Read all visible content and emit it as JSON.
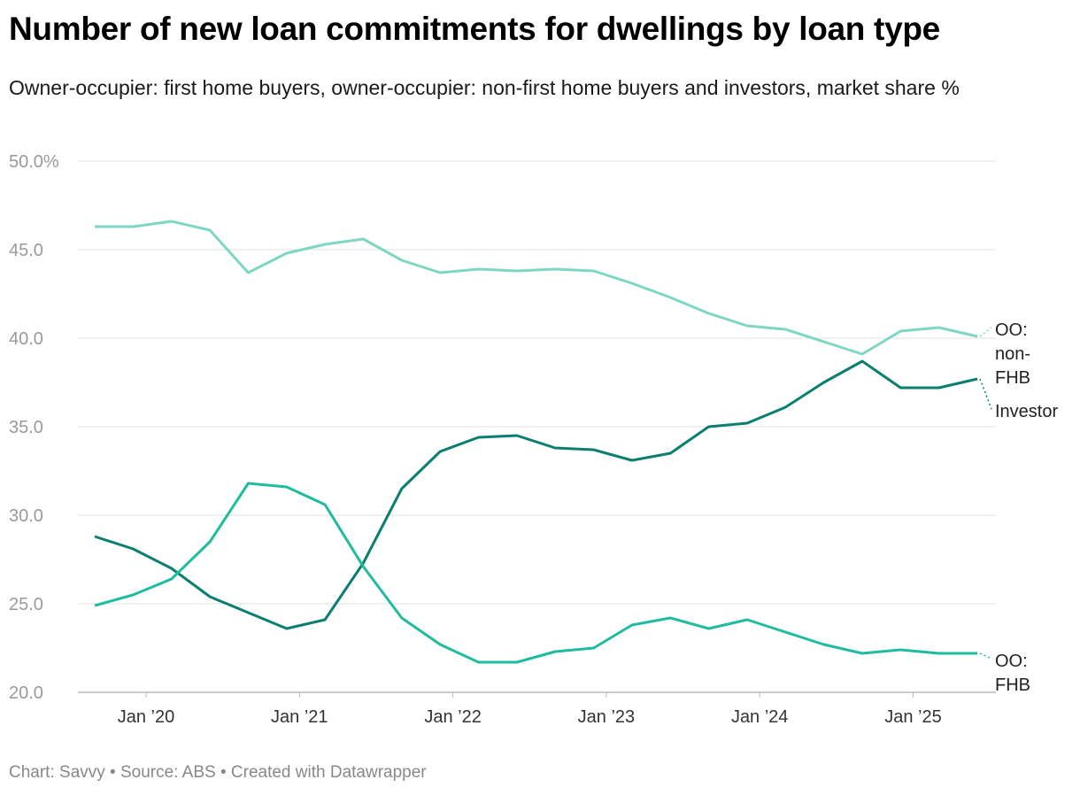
{
  "title": "Number of new loan commitments for dwellings by loan type",
  "subtitle": "Owner-occupier: first home buyers, owner-occupier: non-first home buyers and investors, market share %",
  "footer": "Chart: Savvy • Source: ABS • Created with Datawrapper",
  "chart_data": {
    "type": "line",
    "title": "Number of new loan commitments for dwellings by loan type",
    "subtitle": "Owner-occupier: first home buyers, owner-occupier: non-first home buyers and investors, market share %",
    "ylim": [
      20,
      50
    ],
    "y_ticks": [
      "50.0%",
      "45.0",
      "40.0",
      "35.0",
      "30.0",
      "25.0",
      "20.0"
    ],
    "y_tick_values": [
      50,
      45,
      40,
      35,
      30,
      25,
      20
    ],
    "x_ticks": [
      "Jan ’20",
      "Jan ’21",
      "Jan ’22",
      "Jan ’23",
      "Jan ’24",
      "Jan ’25"
    ],
    "grid": true,
    "x": [
      "2019-09",
      "2019-12",
      "2020-03",
      "2020-06",
      "2020-09",
      "2020-12",
      "2021-03",
      "2021-06",
      "2021-09",
      "2021-12",
      "2022-03",
      "2022-06",
      "2022-09",
      "2022-12",
      "2023-03",
      "2023-06",
      "2023-09",
      "2023-12",
      "2024-03",
      "2024-06",
      "2024-09",
      "2024-12",
      "2025-03",
      "2025-06"
    ],
    "series": [
      {
        "name": "OO: non-FHB",
        "label_lines": [
          "OO:",
          "non-",
          "FHB"
        ],
        "color": "#7fd6c5",
        "values": [
          46.3,
          46.3,
          46.6,
          46.1,
          43.7,
          44.8,
          45.3,
          45.6,
          44.4,
          43.7,
          43.9,
          43.8,
          43.9,
          43.8,
          43.1,
          42.3,
          41.4,
          40.7,
          40.5,
          39.8,
          39.1,
          40.4,
          40.6,
          40.1
        ]
      },
      {
        "name": "Investor",
        "label_lines": [
          "Investor"
        ],
        "color": "#0a7f6f",
        "values": [
          28.8,
          28.1,
          27.0,
          25.4,
          24.5,
          23.6,
          24.1,
          27.3,
          31.5,
          33.6,
          34.4,
          34.5,
          33.8,
          33.7,
          33.1,
          33.5,
          35.0,
          35.2,
          36.1,
          37.5,
          38.7,
          37.2,
          37.2,
          37.7
        ]
      },
      {
        "name": "OO: FHB",
        "label_lines": [
          "OO:",
          "FHB"
        ],
        "color": "#1fbc9e",
        "values": [
          24.9,
          25.5,
          26.4,
          28.5,
          31.8,
          31.6,
          30.6,
          27.1,
          24.2,
          22.7,
          21.7,
          21.7,
          22.3,
          22.5,
          23.8,
          24.2,
          23.6,
          24.1,
          23.4,
          22.7,
          22.2,
          22.4,
          22.2,
          22.2
        ]
      }
    ]
  }
}
